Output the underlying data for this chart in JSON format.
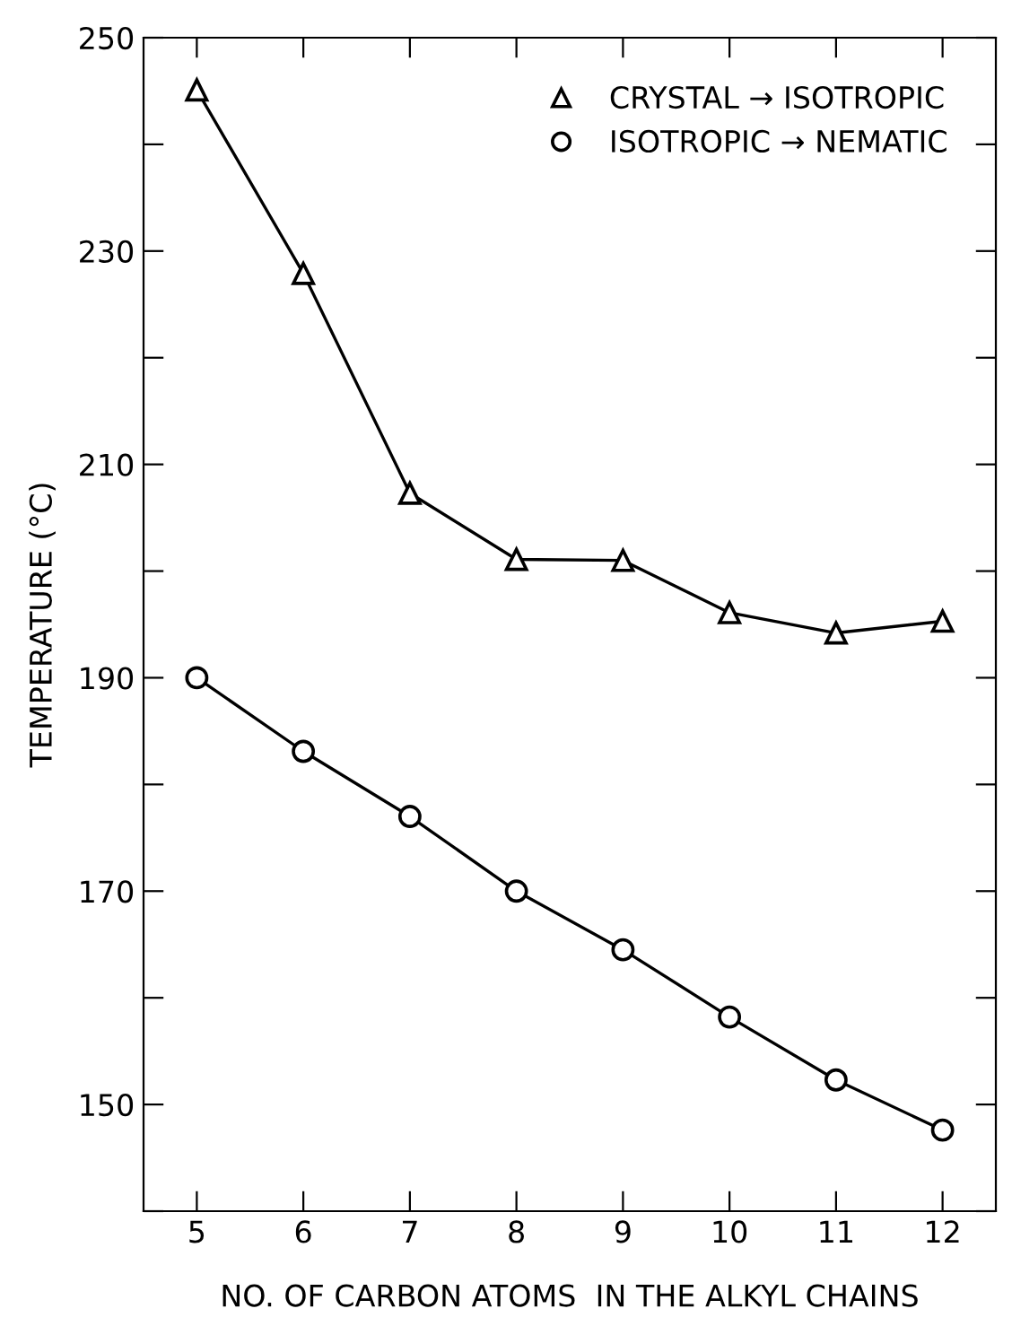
{
  "chart_data": {
    "type": "line",
    "xlabel": "NO. OF CARBON ATOMS  IN THE ALKYL CHAINS",
    "ylabel": "TEMPERATURE (°C)",
    "x": [
      5,
      6,
      7,
      8,
      9,
      10,
      11,
      12
    ],
    "series": [
      {
        "name": "CRYSTAL → ISOTROPIC",
        "color": "#000000",
        "marker": "triangle",
        "values": [
          245.1,
          227.9,
          207.3,
          201.1,
          201.0,
          196.1,
          194.2,
          195.3
        ]
      },
      {
        "name": "ISOTROPIC → NEMATIC",
        "color": "#000000",
        "marker": "circle",
        "values": [
          190.0,
          183.1,
          177.0,
          170.0,
          164.5,
          158.2,
          152.3,
          147.6
        ]
      }
    ],
    "xlim": [
      4.5,
      12.5
    ],
    "xticks": [
      5,
      6,
      7,
      8,
      9,
      10,
      11,
      12
    ],
    "ylim": [
      140,
      250
    ],
    "yticks": [
      {
        "value": 140,
        "label": null
      },
      150,
      {
        "value": 160,
        "label": null
      },
      170,
      {
        "value": 180,
        "label": null
      },
      190,
      {
        "value": 200,
        "label": null
      },
      210,
      {
        "value": 220,
        "label": null
      },
      230,
      {
        "value": 240,
        "label": null
      },
      250
    ],
    "legend": "top right",
    "line_style": "solid",
    "grid": false
  }
}
